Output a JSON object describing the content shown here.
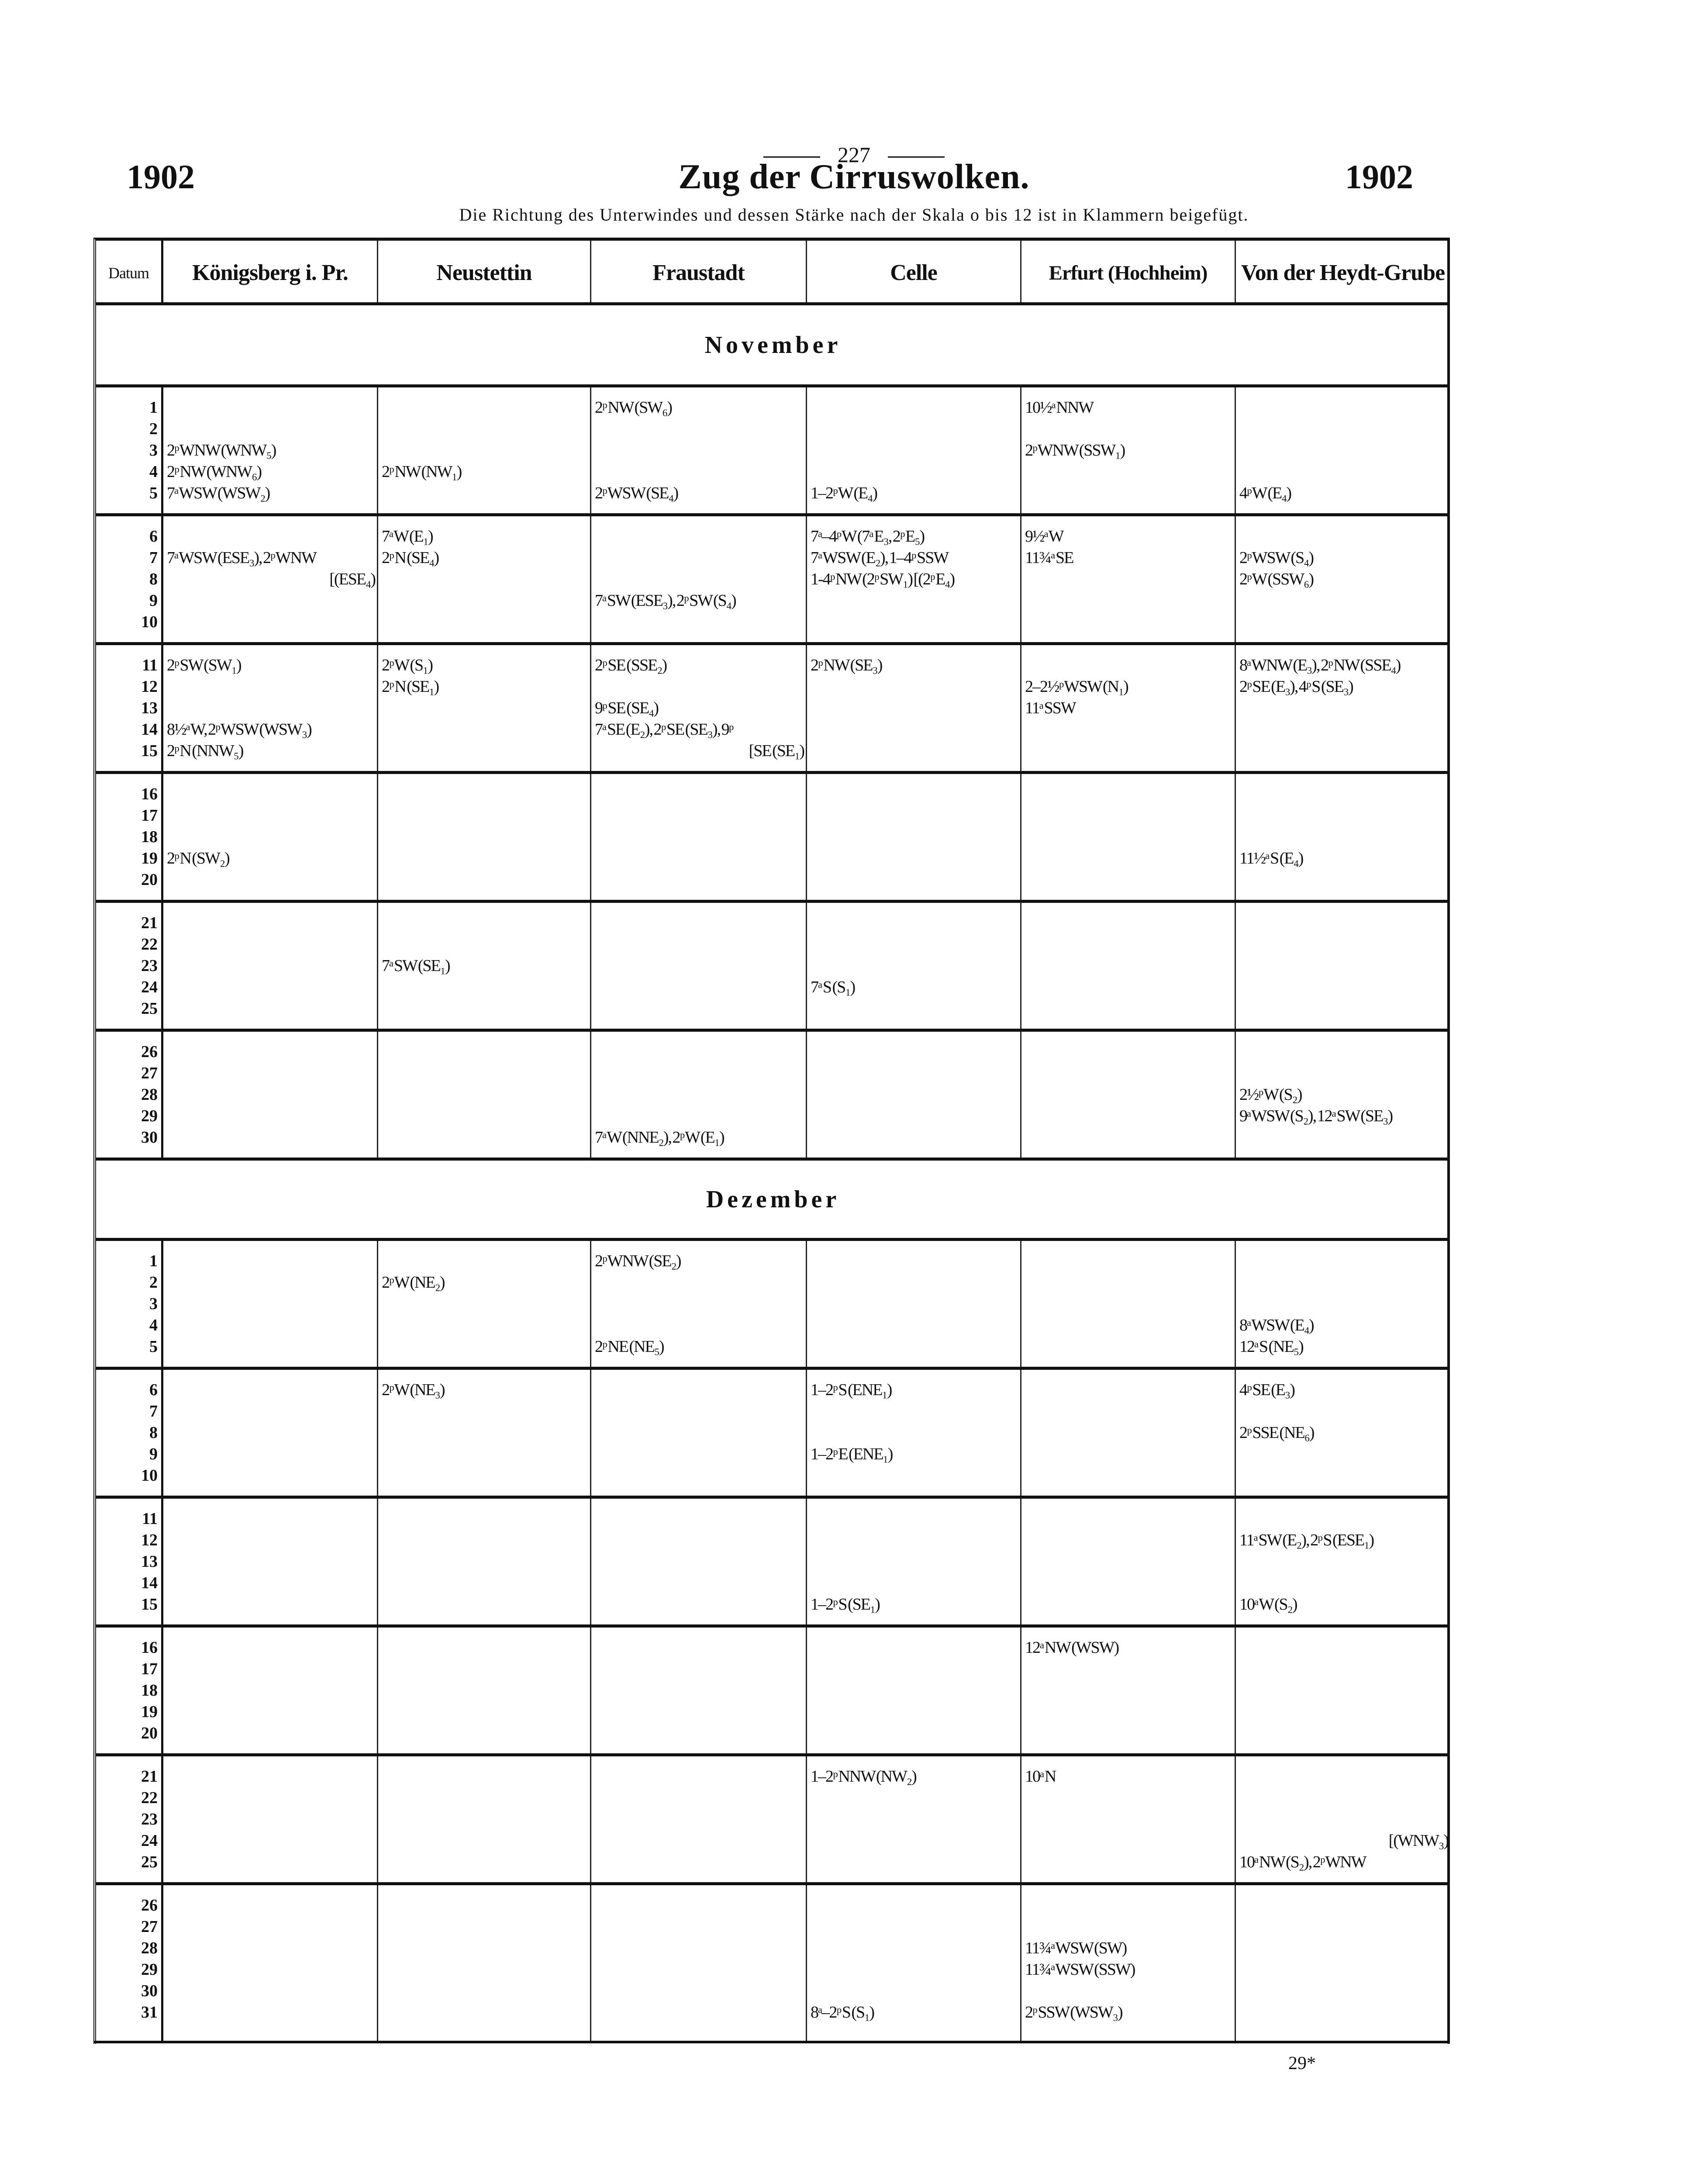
{
  "page_number": "227",
  "year_left": "1902",
  "year_right": "1902",
  "title": "Zug der Cirruswolken.",
  "subtitle": "Die Richtung des Unterwindes und dessen Stärke nach der Skala o bis 12 ist in Klammern beigefügt.",
  "columns": [
    "Datum",
    "Königsberg i. Pr.",
    "Neustettin",
    "Fraustadt",
    "Celle",
    "Erfurt (Hochheim)",
    "Von der Heydt-Grube"
  ],
  "months": [
    {
      "name": "November",
      "blocks": [
        {
          "days": [
            1,
            2,
            3,
            4,
            5
          ],
          "entries": [
            [],
            [
              {
                "day": 3,
                "text": "2ᵖ WNW (WNW₅)"
              },
              {
                "day": 4,
                "text": "2ᵖ NW (WNW₆)"
              },
              {
                "day": 5,
                "text": "7ᵃ WSW (WSW₂)"
              }
            ],
            [
              {
                "day": 4,
                "text": "2ᵖ NW (NW₁)"
              }
            ],
            [
              {
                "day": 1,
                "text": "2ᵖ NW (SW₆)"
              },
              {
                "day": 5,
                "text": "2ᵖ WSW (SE₄)"
              }
            ],
            [
              {
                "day": 5,
                "text": "1–2ᵖ W (E₄)"
              }
            ],
            [
              {
                "day": 1,
                "text": "10½ᵃ NNW"
              },
              {
                "day": 3,
                "text": "2ᵖ WNW (SSW₁)"
              }
            ],
            [
              {
                "day": 5,
                "text": "4ᵖ W (E₄)"
              }
            ]
          ]
        },
        {
          "days": [
            6,
            7,
            8,
            9,
            10
          ],
          "entries": [
            [],
            [
              {
                "day": 7,
                "text": "7ᵃ WSW (ESE₃), 2ᵖ WNW"
              },
              {
                "day": 8,
                "text": "[(ESE₄)"
              }
            ],
            [
              {
                "day": 6,
                "text": "7ᵃ W (E₁)"
              },
              {
                "day": 7,
                "text": "2ᵖ N (SE₄)"
              }
            ],
            [
              {
                "day": 9,
                "text": "7ᵃ SW (ESE₃), 2ᵖ SW (S₄)"
              }
            ],
            [
              {
                "day": 6,
                "text": "7ᵃ–4ᵖ W (7ᵃ E₃, 2ᵖ E₅)"
              },
              {
                "day": 7,
                "text": "7ᵃ WSW (E₂), 1–4ᵖ SSW"
              },
              {
                "day": 8,
                "text": "1-4ᵖ NW (2ᵖ SW₁) [(2ᵖ E₄)"
              }
            ],
            [
              {
                "day": 6,
                "text": "9½ᵃ W"
              },
              {
                "day": 7,
                "text": "11¾ᵃ SE"
              }
            ],
            [
              {
                "day": 7,
                "text": "2ᵖ WSW (S₄)"
              },
              {
                "day": 8,
                "text": "2ᵖ W (SSW₆)"
              }
            ]
          ]
        },
        {
          "days": [
            11,
            12,
            13,
            14,
            15
          ],
          "entries": [
            [],
            [
              {
                "day": 11,
                "text": "2ᵖ SW (SW₁)"
              },
              {
                "day": 14,
                "text": "8½ᵃ W, 2ᵖ WSW (WSW₃)"
              },
              {
                "day": 15,
                "text": "2ᵖ N (NNW₅)"
              }
            ],
            [
              {
                "day": 11,
                "text": "2ᵖ W (S₁)"
              },
              {
                "day": 12,
                "text": "2ᵖ N (SE₁)"
              }
            ],
            [
              {
                "day": 11,
                "text": "2ᵖ SE (SSE₂)"
              },
              {
                "day": 13,
                "text": "9ᵖ SE (SE₄)"
              },
              {
                "day": 14,
                "text": "7ᵃ SE (E₂), 2ᵖ SE (SE₃), 9ᵖ"
              },
              {
                "day": 15,
                "text": "[SE (SE₁)"
              }
            ],
            [
              {
                "day": 11,
                "text": "2ᵖ NW (SE₃)"
              }
            ],
            [
              {
                "day": 12,
                "text": "2–2½ᵖ WSW (N₁)"
              },
              {
                "day": 13,
                "text": "11ᵃ SSW"
              }
            ],
            [
              {
                "day": 11,
                "text": "8ᵃ WNW (E₃), 2ᵖ NW (SSE₄)"
              },
              {
                "day": 12,
                "text": "2ᵖ SE (E₃), 4ᵖ S (SE₃)"
              }
            ]
          ]
        },
        {
          "days": [
            16,
            17,
            18,
            19,
            20
          ],
          "entries": [
            [],
            [
              {
                "day": 19,
                "text": "2ᵖ N (SW₂)"
              }
            ],
            [],
            [],
            [],
            [],
            [
              {
                "day": 19,
                "text": "11½ᵃ S (E₄)"
              }
            ]
          ]
        },
        {
          "days": [
            21,
            22,
            23,
            24,
            25
          ],
          "entries": [
            [],
            [],
            [
              {
                "day": 23,
                "text": "7ᵃ SW (SE₁)"
              }
            ],
            [],
            [
              {
                "day": 24,
                "text": "7ᵃ S (S₁)"
              }
            ],
            [],
            []
          ]
        },
        {
          "days": [
            26,
            27,
            28,
            29,
            30
          ],
          "entries": [
            [],
            [],
            [],
            [
              {
                "day": 30,
                "text": "7ᵃ W (NNE₂), 2ᵖ W (E₁)"
              }
            ],
            [],
            [],
            [
              {
                "day": 28,
                "text": "2½ᵖ W (S₂)"
              },
              {
                "day": 29,
                "text": "9ᵃ WSW (S₂), 12ᵃ SW (SE₃)"
              }
            ]
          ]
        }
      ]
    },
    {
      "name": "Dezember",
      "blocks": [
        {
          "days": [
            1,
            2,
            3,
            4,
            5
          ],
          "entries": [
            [],
            [],
            [
              {
                "day": 2,
                "text": "2ᵖ W (NE₂)"
              }
            ],
            [
              {
                "day": 1,
                "text": "2ᵖ WNW (SE₂)"
              },
              {
                "day": 5,
                "text": "2ᵖ NE (NE₅)"
              }
            ],
            [],
            [],
            [
              {
                "day": 4,
                "text": "8ᵃ WSW (E₄)"
              },
              {
                "day": 5,
                "text": "12ᵃ S (NE₅)"
              }
            ]
          ]
        },
        {
          "days": [
            6,
            7,
            8,
            9,
            10
          ],
          "entries": [
            [],
            [],
            [
              {
                "day": 6,
                "text": "2ᵖ W (NE₃)"
              }
            ],
            [],
            [
              {
                "day": 6,
                "text": "1–2ᵖ S (ENE₁)"
              },
              {
                "day": 9,
                "text": "1–2ᵖ E (ENE₁)"
              }
            ],
            [],
            [
              {
                "day": 6,
                "text": "4ᵖ SE (E₃)"
              },
              {
                "day": 8,
                "text": "2ᵖ SSE (NE₆)"
              }
            ]
          ]
        },
        {
          "days": [
            11,
            12,
            13,
            14,
            15
          ],
          "entries": [
            [],
            [],
            [],
            [],
            [
              {
                "day": 15,
                "text": "1–2ᵖ S (SE₁)"
              }
            ],
            [],
            [
              {
                "day": 12,
                "text": "11ᵃ SW (E₂), 2ᵖ S (ESE₁)"
              },
              {
                "day": 15,
                "text": "10ᵃ W (S₂)"
              }
            ]
          ]
        },
        {
          "days": [
            16,
            17,
            18,
            19,
            20
          ],
          "entries": [
            [],
            [],
            [],
            [],
            [],
            [
              {
                "day": 16,
                "text": "12ᵃ NW (WSW)"
              }
            ],
            []
          ]
        },
        {
          "days": [
            21,
            22,
            23,
            24,
            25
          ],
          "entries": [
            [],
            [],
            [],
            [],
            [
              {
                "day": 21,
                "text": "1–2ᵖ NNW (NW₂)"
              }
            ],
            [
              {
                "day": 21,
                "text": "10ᵃ N"
              }
            ],
            [
              {
                "day": 24,
                "text": "[(WNW₃)"
              },
              {
                "day": 25,
                "text": "10ᵃ NW (S₂), 2ᵖ WNW"
              }
            ]
          ]
        },
        {
          "days": [
            26,
            27,
            28,
            29,
            30,
            31
          ],
          "entries": [
            [],
            [],
            [],
            [],
            [
              {
                "day": 31,
                "text": "8ᵃ–2ᵖ S (S₁)"
              }
            ],
            [
              {
                "day": 28,
                "text": "11¾ᵃ WSW (SW)"
              },
              {
                "day": 29,
                "text": "11¾ᵃ WSW (SSW)"
              },
              {
                "day": 31,
                "text": "2ᵖ SSW (WSW₃)"
              }
            ],
            []
          ]
        }
      ]
    }
  ],
  "footer_signature": "29*"
}
